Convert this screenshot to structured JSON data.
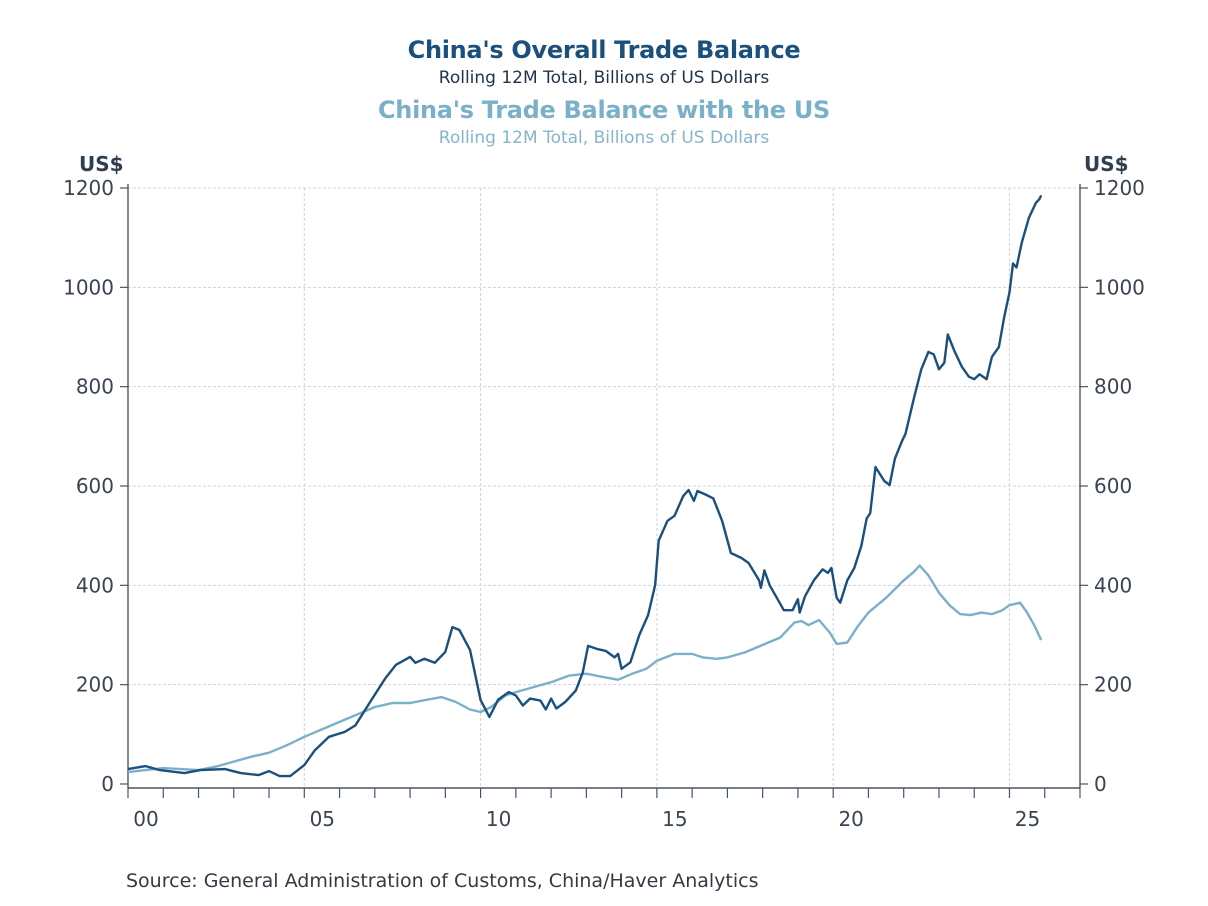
{
  "chart_data": {
    "type": "line",
    "title": "China's Overall Trade Balance",
    "subtitle": "Rolling 12M Total, Billions of US Dollars",
    "title2": "China's Trade Balance with the US",
    "subtitle2": "Rolling 12M Total, Billions of US Dollars",
    "ylabel_left": "US$",
    "ylabel_right": "US$",
    "xlabel": "",
    "xlim": [
      2000,
      2027
    ],
    "ylim": [
      0,
      1200
    ],
    "yticks": [
      0,
      200,
      400,
      600,
      800,
      1000,
      1200
    ],
    "xticks": [
      {
        "value": 2000,
        "label": "00"
      },
      {
        "value": 2005,
        "label": "05"
      },
      {
        "value": 2010,
        "label": "10"
      },
      {
        "value": 2015,
        "label": "15"
      },
      {
        "value": 2020,
        "label": "20"
      },
      {
        "value": 2025,
        "label": "25"
      }
    ],
    "grid": true,
    "source": "Source:  General Administration of Customs, China/Haver Analytics",
    "series": [
      {
        "name": "China's Overall Trade Balance",
        "color": "#1b4f7c",
        "points": [
          [
            2000.0,
            30
          ],
          [
            2000.5,
            36
          ],
          [
            2000.9,
            28
          ],
          [
            2001.6,
            22
          ],
          [
            2002.05,
            28
          ],
          [
            2002.75,
            30
          ],
          [
            2003.2,
            22
          ],
          [
            2003.7,
            18
          ],
          [
            2004.0,
            26
          ],
          [
            2004.3,
            16
          ],
          [
            2004.6,
            16
          ],
          [
            2005.0,
            38
          ],
          [
            2005.3,
            68
          ],
          [
            2005.7,
            95
          ],
          [
            2006.15,
            105
          ],
          [
            2006.45,
            118
          ],
          [
            2006.9,
            169
          ],
          [
            2007.3,
            213
          ],
          [
            2007.6,
            240
          ],
          [
            2008.0,
            256
          ],
          [
            2008.15,
            244
          ],
          [
            2008.4,
            252
          ],
          [
            2008.7,
            244
          ],
          [
            2009.0,
            266
          ],
          [
            2009.2,
            316
          ],
          [
            2009.4,
            310
          ],
          [
            2009.7,
            270
          ],
          [
            2010.0,
            169
          ],
          [
            2010.25,
            135
          ],
          [
            2010.5,
            170
          ],
          [
            2010.8,
            185
          ],
          [
            2011.0,
            178
          ],
          [
            2011.2,
            158
          ],
          [
            2011.4,
            172
          ],
          [
            2011.7,
            168
          ],
          [
            2011.85,
            150
          ],
          [
            2012.0,
            172
          ],
          [
            2012.15,
            152
          ],
          [
            2012.4,
            165
          ],
          [
            2012.7,
            188
          ],
          [
            2012.9,
            225
          ],
          [
            2013.05,
            278
          ],
          [
            2013.3,
            272
          ],
          [
            2013.55,
            268
          ],
          [
            2013.8,
            255
          ],
          [
            2013.9,
            262
          ],
          [
            2014.0,
            232
          ],
          [
            2014.25,
            245
          ],
          [
            2014.5,
            300
          ],
          [
            2014.75,
            340
          ],
          [
            2014.95,
            400
          ],
          [
            2015.05,
            490
          ],
          [
            2015.3,
            530
          ],
          [
            2015.5,
            540
          ],
          [
            2015.75,
            580
          ],
          [
            2015.9,
            592
          ],
          [
            2016.05,
            570
          ],
          [
            2016.15,
            590
          ],
          [
            2016.4,
            582
          ],
          [
            2016.6,
            575
          ],
          [
            2016.85,
            530
          ],
          [
            2017.1,
            465
          ],
          [
            2017.4,
            455
          ],
          [
            2017.6,
            445
          ],
          [
            2017.9,
            410
          ],
          [
            2017.95,
            395
          ],
          [
            2018.05,
            430
          ],
          [
            2018.2,
            400
          ],
          [
            2018.4,
            375
          ],
          [
            2018.6,
            350
          ],
          [
            2018.85,
            350
          ],
          [
            2019.0,
            372
          ],
          [
            2019.05,
            345
          ],
          [
            2019.2,
            378
          ],
          [
            2019.45,
            410
          ],
          [
            2019.7,
            432
          ],
          [
            2019.85,
            425
          ],
          [
            2019.95,
            435
          ],
          [
            2020.1,
            375
          ],
          [
            2020.2,
            365
          ],
          [
            2020.4,
            410
          ],
          [
            2020.6,
            435
          ],
          [
            2020.8,
            480
          ],
          [
            2020.95,
            535
          ],
          [
            2021.05,
            545
          ],
          [
            2021.2,
            638
          ],
          [
            2021.45,
            610
          ],
          [
            2021.6,
            602
          ],
          [
            2021.75,
            655
          ],
          [
            2021.95,
            690
          ],
          [
            2022.05,
            705
          ],
          [
            2022.3,
            780
          ],
          [
            2022.5,
            835
          ],
          [
            2022.7,
            870
          ],
          [
            2022.85,
            865
          ],
          [
            2023.0,
            835
          ],
          [
            2023.15,
            848
          ],
          [
            2023.25,
            905
          ],
          [
            2023.45,
            870
          ],
          [
            2023.65,
            840
          ],
          [
            2023.85,
            820
          ],
          [
            2024.0,
            815
          ],
          [
            2024.15,
            825
          ],
          [
            2024.35,
            815
          ],
          [
            2024.5,
            860
          ],
          [
            2024.7,
            880
          ],
          [
            2024.85,
            940
          ],
          [
            2025.0,
            990
          ],
          [
            2025.1,
            1048
          ],
          [
            2025.2,
            1040
          ],
          [
            2025.35,
            1090
          ],
          [
            2025.55,
            1140
          ],
          [
            2025.75,
            1170
          ],
          [
            2025.85,
            1178
          ],
          [
            2025.9,
            1185
          ]
        ]
      },
      {
        "name": "China's Trade Balance with the US",
        "color": "#7ab0c8",
        "points": [
          [
            2000.0,
            24
          ],
          [
            2000.5,
            28
          ],
          [
            2001.0,
            32
          ],
          [
            2001.5,
            30
          ],
          [
            2002.0,
            28
          ],
          [
            2002.5,
            35
          ],
          [
            2003.0,
            45
          ],
          [
            2003.5,
            55
          ],
          [
            2004.0,
            63
          ],
          [
            2004.5,
            78
          ],
          [
            2005.0,
            95
          ],
          [
            2005.5,
            110
          ],
          [
            2006.0,
            125
          ],
          [
            2006.5,
            140
          ],
          [
            2007.0,
            155
          ],
          [
            2007.5,
            163
          ],
          [
            2008.0,
            163
          ],
          [
            2008.5,
            170
          ],
          [
            2008.9,
            175
          ],
          [
            2009.3,
            165
          ],
          [
            2009.7,
            150
          ],
          [
            2010.0,
            145
          ],
          [
            2010.3,
            155
          ],
          [
            2010.7,
            178
          ],
          [
            2011.0,
            185
          ],
          [
            2011.5,
            195
          ],
          [
            2012.0,
            205
          ],
          [
            2012.5,
            218
          ],
          [
            2013.0,
            222
          ],
          [
            2013.5,
            215
          ],
          [
            2013.9,
            210
          ],
          [
            2014.3,
            222
          ],
          [
            2014.7,
            232
          ],
          [
            2015.0,
            248
          ],
          [
            2015.5,
            262
          ],
          [
            2016.0,
            262
          ],
          [
            2016.3,
            255
          ],
          [
            2016.7,
            252
          ],
          [
            2017.0,
            255
          ],
          [
            2017.5,
            265
          ],
          [
            2018.0,
            280
          ],
          [
            2018.5,
            295
          ],
          [
            2018.9,
            325
          ],
          [
            2019.1,
            328
          ],
          [
            2019.3,
            320
          ],
          [
            2019.6,
            330
          ],
          [
            2019.9,
            305
          ],
          [
            2020.1,
            282
          ],
          [
            2020.4,
            285
          ],
          [
            2020.7,
            318
          ],
          [
            2021.0,
            345
          ],
          [
            2021.5,
            375
          ],
          [
            2022.0,
            410
          ],
          [
            2022.3,
            428
          ],
          [
            2022.45,
            440
          ],
          [
            2022.7,
            420
          ],
          [
            2023.0,
            385
          ],
          [
            2023.3,
            360
          ],
          [
            2023.6,
            342
          ],
          [
            2023.9,
            340
          ],
          [
            2024.2,
            345
          ],
          [
            2024.5,
            342
          ],
          [
            2024.8,
            350
          ],
          [
            2025.0,
            360
          ],
          [
            2025.3,
            365
          ],
          [
            2025.5,
            345
          ],
          [
            2025.7,
            320
          ],
          [
            2025.9,
            290
          ]
        ]
      }
    ]
  }
}
